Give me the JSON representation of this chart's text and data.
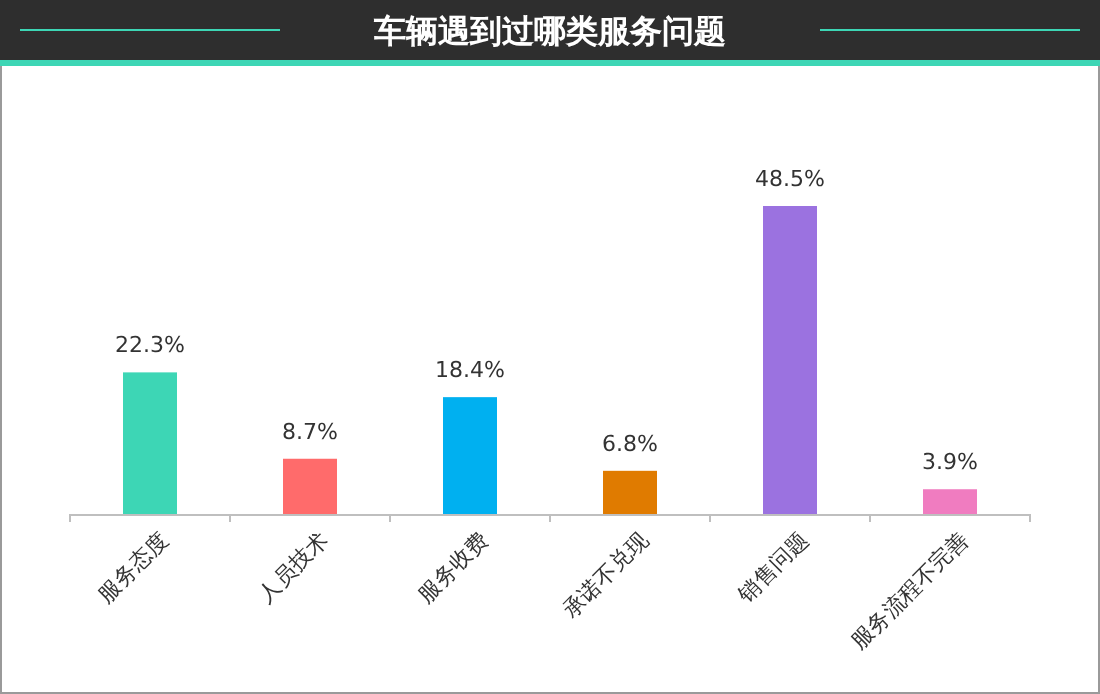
{
  "chart_data": {
    "type": "bar",
    "title": "车辆遇到过哪类服务问题",
    "categories": [
      "服务态度",
      "人员技术",
      "服务收费",
      "承诺不兑现",
      "销售问题",
      "服务流程不完善"
    ],
    "values": [
      22.3,
      8.7,
      18.4,
      6.8,
      48.5,
      3.9
    ],
    "value_labels": [
      "22.3%",
      "8.7%",
      "18.4%",
      "6.8%",
      "48.5%",
      "3.9%"
    ],
    "colors": [
      "#3dd6b5",
      "#ff6b6b",
      "#00b0f0",
      "#e07b00",
      "#9b72e0",
      "#f07cc0"
    ]
  }
}
